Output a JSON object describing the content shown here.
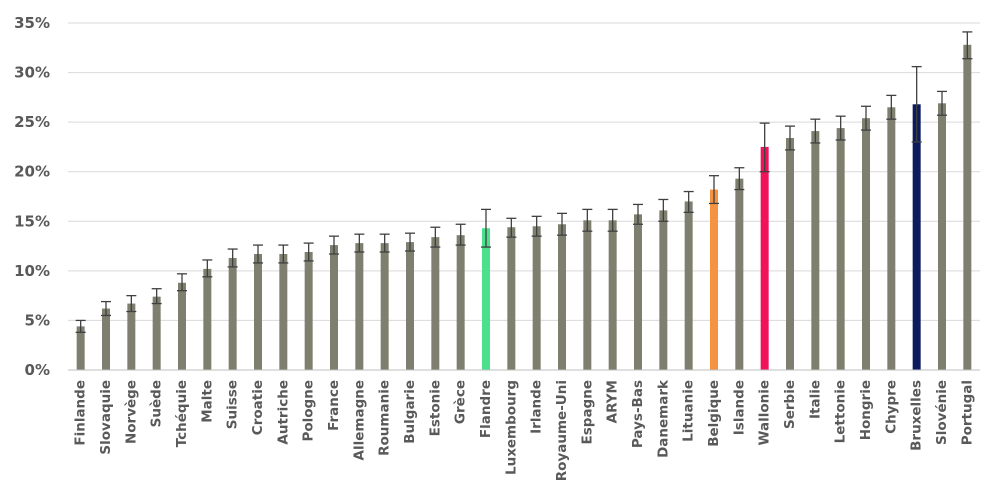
{
  "chart_data": {
    "type": "bar",
    "ylim": [
      0,
      35
    ],
    "y_ticks": [
      "0%",
      "5%",
      "10%",
      "15%",
      "20%",
      "25%",
      "30%",
      "35%"
    ],
    "grid": true,
    "categories": [
      "Finlande",
      "Slovaquie",
      "Norvège",
      "Suède",
      "Tchéquie",
      "Malte",
      "Suisse",
      "Croatie",
      "Autriche",
      "Pologne",
      "France",
      "Allemagne",
      "Roumanie",
      "Bulgarie",
      "Estonie",
      "Grèce",
      "Flandre",
      "Luxembourg",
      "Irlande",
      "Royaume-Uni",
      "Espagne",
      "ARYM",
      "Pays-Bas",
      "Danemark",
      "Lituanie",
      "Belgique",
      "Islande",
      "Wallonie",
      "Serbie",
      "Italie",
      "Lettonie",
      "Hongrie",
      "Chypre",
      "Bruxelles",
      "Slovénie",
      "Portugal"
    ],
    "values": [
      4.4,
      6.2,
      6.7,
      7.4,
      8.8,
      10.2,
      11.3,
      11.7,
      11.7,
      11.9,
      12.6,
      12.8,
      12.8,
      12.9,
      13.4,
      13.6,
      14.3,
      14.4,
      14.5,
      14.7,
      15.1,
      15.1,
      15.7,
      16.1,
      17.0,
      18.2,
      19.3,
      22.5,
      23.4,
      24.1,
      24.4,
      25.4,
      26.5,
      26.8,
      26.9,
      32.8
    ],
    "error_low": [
      3.8,
      5.5,
      5.9,
      6.7,
      8.0,
      9.4,
      10.4,
      10.8,
      10.8,
      11.0,
      11.7,
      11.9,
      11.9,
      12.0,
      12.4,
      12.6,
      12.4,
      13.4,
      13.5,
      13.6,
      14.0,
      14.0,
      14.7,
      15.0,
      15.9,
      16.8,
      18.2,
      20.0,
      22.2,
      22.9,
      23.2,
      24.2,
      25.3,
      23.0,
      25.7,
      31.4
    ],
    "error_high": [
      5.0,
      6.9,
      7.5,
      8.2,
      9.7,
      11.1,
      12.2,
      12.6,
      12.6,
      12.8,
      13.5,
      13.7,
      13.7,
      13.8,
      14.4,
      14.7,
      16.2,
      15.3,
      15.5,
      15.8,
      16.2,
      16.2,
      16.7,
      17.2,
      18.0,
      19.6,
      20.4,
      24.9,
      24.6,
      25.3,
      25.6,
      26.6,
      27.7,
      30.6,
      28.1,
      34.1
    ],
    "colors": {
      "default": "#7f7f6f",
      "Flandre": "#4ae08c",
      "Belgique": "#f59342",
      "Wallonie": "#f0135a",
      "Bruxelles": "#0c1a5e",
      "error_bar": "#404040",
      "grid": "#d9d9d9",
      "axis": "#bfbfbf"
    }
  }
}
